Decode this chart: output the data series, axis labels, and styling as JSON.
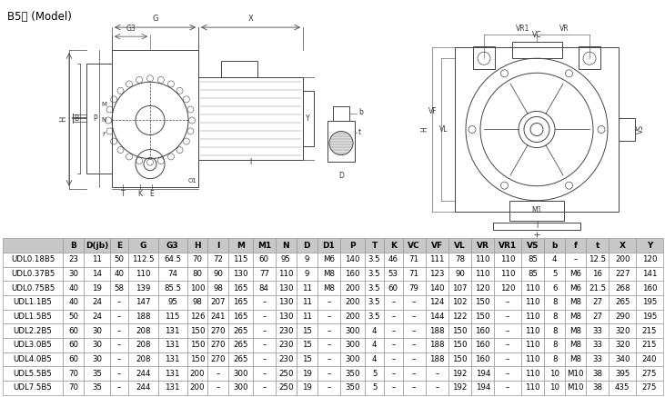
{
  "title": "B5型 (Model)",
  "columns": [
    "",
    "B",
    "D(jb)",
    "E",
    "G",
    "G3",
    "H",
    "I",
    "M",
    "M1",
    "N",
    "D",
    "D1",
    "P",
    "T",
    "K",
    "VC",
    "VF",
    "VL",
    "VR",
    "VR1",
    "VS",
    "b",
    "f",
    "t",
    "X",
    "Y"
  ],
  "rows": [
    [
      "UDL0.18B5",
      "23",
      "11",
      "50",
      "112.5",
      "64.5",
      "70",
      "72",
      "115",
      "60",
      "95",
      "9",
      "M6",
      "140",
      "3.5",
      "46",
      "71",
      "111",
      "78",
      "110",
      "110",
      "85",
      "4",
      "–",
      "12.5",
      "200",
      "120"
    ],
    [
      "UDL0.37B5",
      "30",
      "14",
      "40",
      "110",
      "74",
      "80",
      "90",
      "130",
      "77",
      "110",
      "9",
      "M8",
      "160",
      "3.5",
      "53",
      "71",
      "123",
      "90",
      "110",
      "110",
      "85",
      "5",
      "M6",
      "16",
      "227",
      "141"
    ],
    [
      "UDL0.75B5",
      "40",
      "19",
      "58",
      "139",
      "85.5",
      "100",
      "98",
      "165",
      "84",
      "130",
      "11",
      "M8",
      "200",
      "3.5",
      "60",
      "79",
      "140",
      "107",
      "120",
      "120",
      "110",
      "6",
      "M6",
      "21.5",
      "268",
      "160"
    ],
    [
      "UDL1.1B5",
      "40",
      "24",
      "–",
      "147",
      "95",
      "98",
      "207",
      "165",
      "–",
      "130",
      "11",
      "–",
      "200",
      "3.5",
      "–",
      "–",
      "124",
      "102",
      "150",
      "–",
      "110",
      "8",
      "M8",
      "27",
      "265",
      "195"
    ],
    [
      "UDL1.5B5",
      "50",
      "24",
      "–",
      "188",
      "115",
      "126",
      "241",
      "165",
      "–",
      "130",
      "11",
      "–",
      "200",
      "3.5",
      "–",
      "–",
      "144",
      "122",
      "150",
      "–",
      "110",
      "8",
      "M8",
      "27",
      "290",
      "195"
    ],
    [
      "UDL2.2B5",
      "60",
      "30",
      "–",
      "208",
      "131",
      "150",
      "270",
      "265",
      "–",
      "230",
      "15",
      "–",
      "300",
      "4",
      "–",
      "–",
      "188",
      "150",
      "160",
      "–",
      "110",
      "8",
      "M8",
      "33",
      "320",
      "215"
    ],
    [
      "UDL3.0B5",
      "60",
      "30",
      "–",
      "208",
      "131",
      "150",
      "270",
      "265",
      "–",
      "230",
      "15",
      "–",
      "300",
      "4",
      "–",
      "–",
      "188",
      "150",
      "160",
      "–",
      "110",
      "8",
      "M8",
      "33",
      "320",
      "215"
    ],
    [
      "UDL4.0B5",
      "60",
      "30",
      "–",
      "208",
      "131",
      "150",
      "270",
      "265",
      "–",
      "230",
      "15",
      "–",
      "300",
      "4",
      "–",
      "–",
      "188",
      "150",
      "160",
      "–",
      "110",
      "8",
      "M8",
      "33",
      "340",
      "240"
    ],
    [
      "UDL5.5B5",
      "70",
      "35",
      "–",
      "244",
      "131",
      "200",
      "–",
      "300",
      "–",
      "250",
      "19",
      "–",
      "350",
      "5",
      "–",
      "–",
      "–",
      "192",
      "194",
      "–",
      "110",
      "10",
      "M10",
      "38",
      "395",
      "275"
    ],
    [
      "UDL7.5B5",
      "70",
      "35",
      "–",
      "244",
      "131",
      "200",
      "–",
      "300",
      "–",
      "250",
      "19",
      "–",
      "350",
      "5",
      "–",
      "–",
      "–",
      "192",
      "194",
      "–",
      "110",
      "10",
      "M10",
      "38",
      "435",
      "275"
    ]
  ],
  "header_bg": "#c8c8c8",
  "row_bg_odd": "#ffffff",
  "row_bg_even": "#efefef",
  "border_color": "#999999",
  "text_color": "#000000",
  "header_fontsize": 6.5,
  "row_fontsize": 6.2,
  "lc": "#444444",
  "lw": 0.7
}
